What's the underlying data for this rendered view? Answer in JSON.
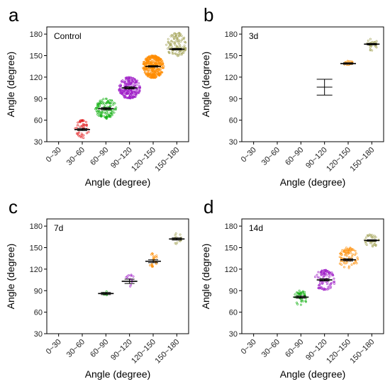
{
  "chart_data": [
    {
      "type": "scatter",
      "panel": "a",
      "title": "Control",
      "xlabel": "Angle (degree)",
      "ylabel": "Angle (degree)",
      "categories": [
        "0~30",
        "30~60",
        "60~90",
        "90~120",
        "120~150",
        "150~180"
      ],
      "yticks": [
        30,
        60,
        90,
        120,
        150,
        180
      ],
      "ylim": [
        30,
        190
      ],
      "series": [
        {
          "category": "30~60",
          "color": "#e31a1c",
          "mean": 47,
          "sem": 1.5,
          "count": 40,
          "range": [
            35,
            60
          ]
        },
        {
          "category": "60~90",
          "color": "#1ab21a",
          "mean": 76,
          "sem": 1.5,
          "count": 110,
          "range": [
            62,
            90
          ]
        },
        {
          "category": "90~120",
          "color": "#a020c8",
          "mean": 105,
          "sem": 1.5,
          "count": 220,
          "range": [
            90,
            120
          ]
        },
        {
          "category": "120~150",
          "color": "#ff8c00",
          "mean": 135,
          "sem": 1,
          "count": 320,
          "range": [
            119,
            150
          ]
        },
        {
          "category": "150~180",
          "color": "#a8a860",
          "mean": 159,
          "sem": 1,
          "count": 110,
          "range": [
            149,
            182
          ]
        }
      ]
    },
    {
      "type": "scatter",
      "panel": "b",
      "title": "3d",
      "xlabel": "Angle (degree)",
      "ylabel": "Angle (degree)",
      "categories": [
        "0~30",
        "30~60",
        "60~90",
        "90~120",
        "120~150",
        "150~180"
      ],
      "yticks": [
        30,
        60,
        90,
        120,
        150,
        180
      ],
      "ylim": [
        30,
        190
      ],
      "series": [
        {
          "category": "90~120",
          "color": "#222222",
          "mean": 106,
          "sem": 11,
          "count": 0,
          "range": [
            95,
            117
          ]
        },
        {
          "category": "120~150",
          "color": "#ff8c00",
          "mean": 139,
          "sem": 1,
          "count": 14,
          "range": [
            136,
            143
          ]
        },
        {
          "category": "150~180",
          "color": "#a8a860",
          "mean": 166,
          "sem": 1,
          "count": 24,
          "range": [
            157,
            174
          ]
        }
      ]
    },
    {
      "type": "scatter",
      "panel": "c",
      "title": "7d",
      "xlabel": "Angle (degree)",
      "ylabel": "Angle (degree)",
      "categories": [
        "0~30",
        "30~60",
        "60~90",
        "90~120",
        "120~150",
        "150~180"
      ],
      "yticks": [
        30,
        60,
        90,
        120,
        150,
        180
      ],
      "ylim": [
        30,
        190
      ],
      "series": [
        {
          "category": "60~90",
          "color": "#1ab21a",
          "mean": 86,
          "sem": 1.5,
          "count": 6,
          "range": [
            84,
            89
          ]
        },
        {
          "category": "90~120",
          "color": "#a020c8",
          "mean": 103,
          "sem": 3,
          "count": 12,
          "range": [
            95,
            114
          ]
        },
        {
          "category": "120~150",
          "color": "#ff8c00",
          "mean": 131,
          "sem": 2,
          "count": 20,
          "range": [
            122,
            142
          ]
        },
        {
          "category": "150~180",
          "color": "#a8a860",
          "mean": 162,
          "sem": 1.5,
          "count": 14,
          "range": [
            154,
            171
          ]
        }
      ]
    },
    {
      "type": "scatter",
      "panel": "d",
      "title": "14d",
      "xlabel": "Angle (degree)",
      "ylabel": "Angle (degree)",
      "categories": [
        "0~30",
        "30~60",
        "60~90",
        "90~120",
        "120~150",
        "150~180"
      ],
      "yticks": [
        30,
        60,
        90,
        120,
        150,
        180
      ],
      "ylim": [
        30,
        190
      ],
      "series": [
        {
          "category": "60~90",
          "color": "#1ab21a",
          "mean": 81,
          "sem": 1.5,
          "count": 40,
          "range": [
            70,
            90
          ]
        },
        {
          "category": "90~120",
          "color": "#a020c8",
          "mean": 105,
          "sem": 1.5,
          "count": 90,
          "range": [
            91,
            119
          ]
        },
        {
          "category": "120~150",
          "color": "#ff8c00",
          "mean": 133,
          "sem": 1.5,
          "count": 70,
          "range": [
            121,
            150
          ]
        },
        {
          "category": "150~180",
          "color": "#a8a860",
          "mean": 160,
          "sem": 1,
          "count": 40,
          "range": [
            151,
            169
          ]
        }
      ]
    }
  ]
}
